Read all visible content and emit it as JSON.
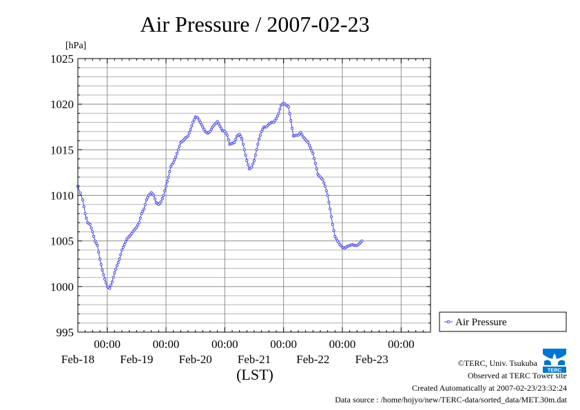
{
  "chart_data": {
    "type": "line",
    "title": "Air Pressure / 2007-02-23",
    "xlabel": "(LST)",
    "ylabel": "[hPa]",
    "ylim": [
      995,
      1025
    ],
    "yticks": [
      995,
      1000,
      1005,
      1010,
      1015,
      1020,
      1025
    ],
    "grid": true,
    "legend": "right",
    "x_tick_time_label": "00:00",
    "x_ticks": [
      {
        "time": "00:00",
        "day_hours": 12,
        "day": "Feb-18"
      },
      {
        "time": "00:00",
        "day_hours": 36,
        "day": "Feb-19"
      },
      {
        "time": "00:00",
        "day_hours": 60,
        "day": "Feb-20"
      },
      {
        "time": "00:00",
        "day_hours": 84,
        "day": "Feb-21"
      },
      {
        "time": "00:00",
        "day_hours": 108,
        "day": "Feb-22"
      },
      {
        "time": "00:00",
        "day_hours": 132,
        "day": "Feb-23"
      }
    ],
    "x_range_hours": [
      0,
      144
    ],
    "series": [
      {
        "name": "Air Pressure",
        "color": "#4040e0",
        "points": [
          [
            0,
            1011.0
          ],
          [
            2,
            1009.5
          ],
          [
            3,
            1008.0
          ],
          [
            4,
            1007.0
          ],
          [
            5,
            1006.8
          ],
          [
            6,
            1006.0
          ],
          [
            7,
            1005.0
          ],
          [
            8,
            1004.5
          ],
          [
            9,
            1003.0
          ],
          [
            10,
            1001.8
          ],
          [
            11,
            1000.8
          ],
          [
            12,
            1000.0
          ],
          [
            13,
            999.8
          ],
          [
            14,
            1000.5
          ],
          [
            15,
            1001.5
          ],
          [
            16,
            1002.3
          ],
          [
            17,
            1003.0
          ],
          [
            18,
            1004.0
          ],
          [
            19,
            1004.6
          ],
          [
            20,
            1005.2
          ],
          [
            21,
            1005.5
          ],
          [
            22,
            1005.8
          ],
          [
            23,
            1006.2
          ],
          [
            24,
            1006.5
          ],
          [
            25,
            1007.0
          ],
          [
            26,
            1008.0
          ],
          [
            27,
            1008.5
          ],
          [
            28,
            1009.5
          ],
          [
            29,
            1010.0
          ],
          [
            30,
            1010.3
          ],
          [
            31,
            1010.0
          ],
          [
            32,
            1009.2
          ],
          [
            33,
            1009.0
          ],
          [
            34,
            1009.3
          ],
          [
            35,
            1010.0
          ],
          [
            36,
            1011.0
          ],
          [
            37,
            1012.0
          ],
          [
            38,
            1013.2
          ],
          [
            39,
            1013.6
          ],
          [
            40,
            1014.2
          ],
          [
            41,
            1015.0
          ],
          [
            42,
            1015.8
          ],
          [
            43,
            1016.0
          ],
          [
            44,
            1016.3
          ],
          [
            45,
            1016.5
          ],
          [
            46,
            1017.2
          ],
          [
            47,
            1018.0
          ],
          [
            48,
            1018.6
          ],
          [
            49,
            1018.5
          ],
          [
            50,
            1018.0
          ],
          [
            51,
            1017.5
          ],
          [
            52,
            1017.0
          ],
          [
            53,
            1016.8
          ],
          [
            54,
            1017.0
          ],
          [
            55,
            1017.5
          ],
          [
            56,
            1017.8
          ],
          [
            57,
            1018.1
          ],
          [
            58,
            1017.6
          ],
          [
            59,
            1017.1
          ],
          [
            60,
            1017.0
          ],
          [
            61,
            1016.6
          ],
          [
            62,
            1015.6
          ],
          [
            63,
            1015.7
          ],
          [
            64,
            1015.8
          ],
          [
            65,
            1016.5
          ],
          [
            66,
            1016.7
          ],
          [
            67,
            1016.2
          ],
          [
            68,
            1015.0
          ],
          [
            69,
            1013.8
          ],
          [
            70,
            1012.9
          ],
          [
            71,
            1013.1
          ],
          [
            72,
            1013.8
          ],
          [
            73,
            1015.0
          ],
          [
            74,
            1016.2
          ],
          [
            75,
            1017.0
          ],
          [
            76,
            1017.5
          ],
          [
            77,
            1017.5
          ],
          [
            78,
            1017.8
          ],
          [
            79,
            1018.0
          ],
          [
            80,
            1018.0
          ],
          [
            81,
            1018.4
          ],
          [
            82,
            1019.0
          ],
          [
            83,
            1019.9
          ],
          [
            84,
            1020.1
          ],
          [
            85,
            1019.9
          ],
          [
            86,
            1019.7
          ],
          [
            87,
            1018.2
          ],
          [
            88,
            1016.5
          ],
          [
            89,
            1016.6
          ],
          [
            90,
            1016.6
          ],
          [
            91,
            1016.9
          ],
          [
            92,
            1016.4
          ],
          [
            93,
            1016.1
          ],
          [
            94,
            1015.8
          ],
          [
            95,
            1015.2
          ],
          [
            96,
            1014.6
          ],
          [
            97,
            1013.5
          ],
          [
            98,
            1012.3
          ],
          [
            99,
            1012.0
          ],
          [
            100,
            1011.7
          ],
          [
            101,
            1011.0
          ],
          [
            102,
            1010.0
          ],
          [
            103,
            1008.5
          ],
          [
            104,
            1006.8
          ],
          [
            105,
            1005.5
          ],
          [
            106,
            1005.0
          ],
          [
            107,
            1004.6
          ],
          [
            108,
            1004.3
          ],
          [
            109,
            1004.2
          ],
          [
            110,
            1004.4
          ],
          [
            111,
            1004.5
          ],
          [
            112,
            1004.6
          ],
          [
            113,
            1004.5
          ],
          [
            114,
            1004.5
          ],
          [
            115,
            1004.7
          ],
          [
            116,
            1005.0
          ]
        ]
      }
    ]
  },
  "footer": {
    "copyright": "©TERC, Univ. Tsukuba",
    "observed": "Observed at TERC Tower site",
    "created": "Created Automatically at 2007-02-23/23:32:24",
    "source": "Data source : /home/hojyo/new/TERC-data/sorted_data/MET.30m.dat"
  },
  "logo": {
    "text": "TERC",
    "color": "#0077cc"
  }
}
